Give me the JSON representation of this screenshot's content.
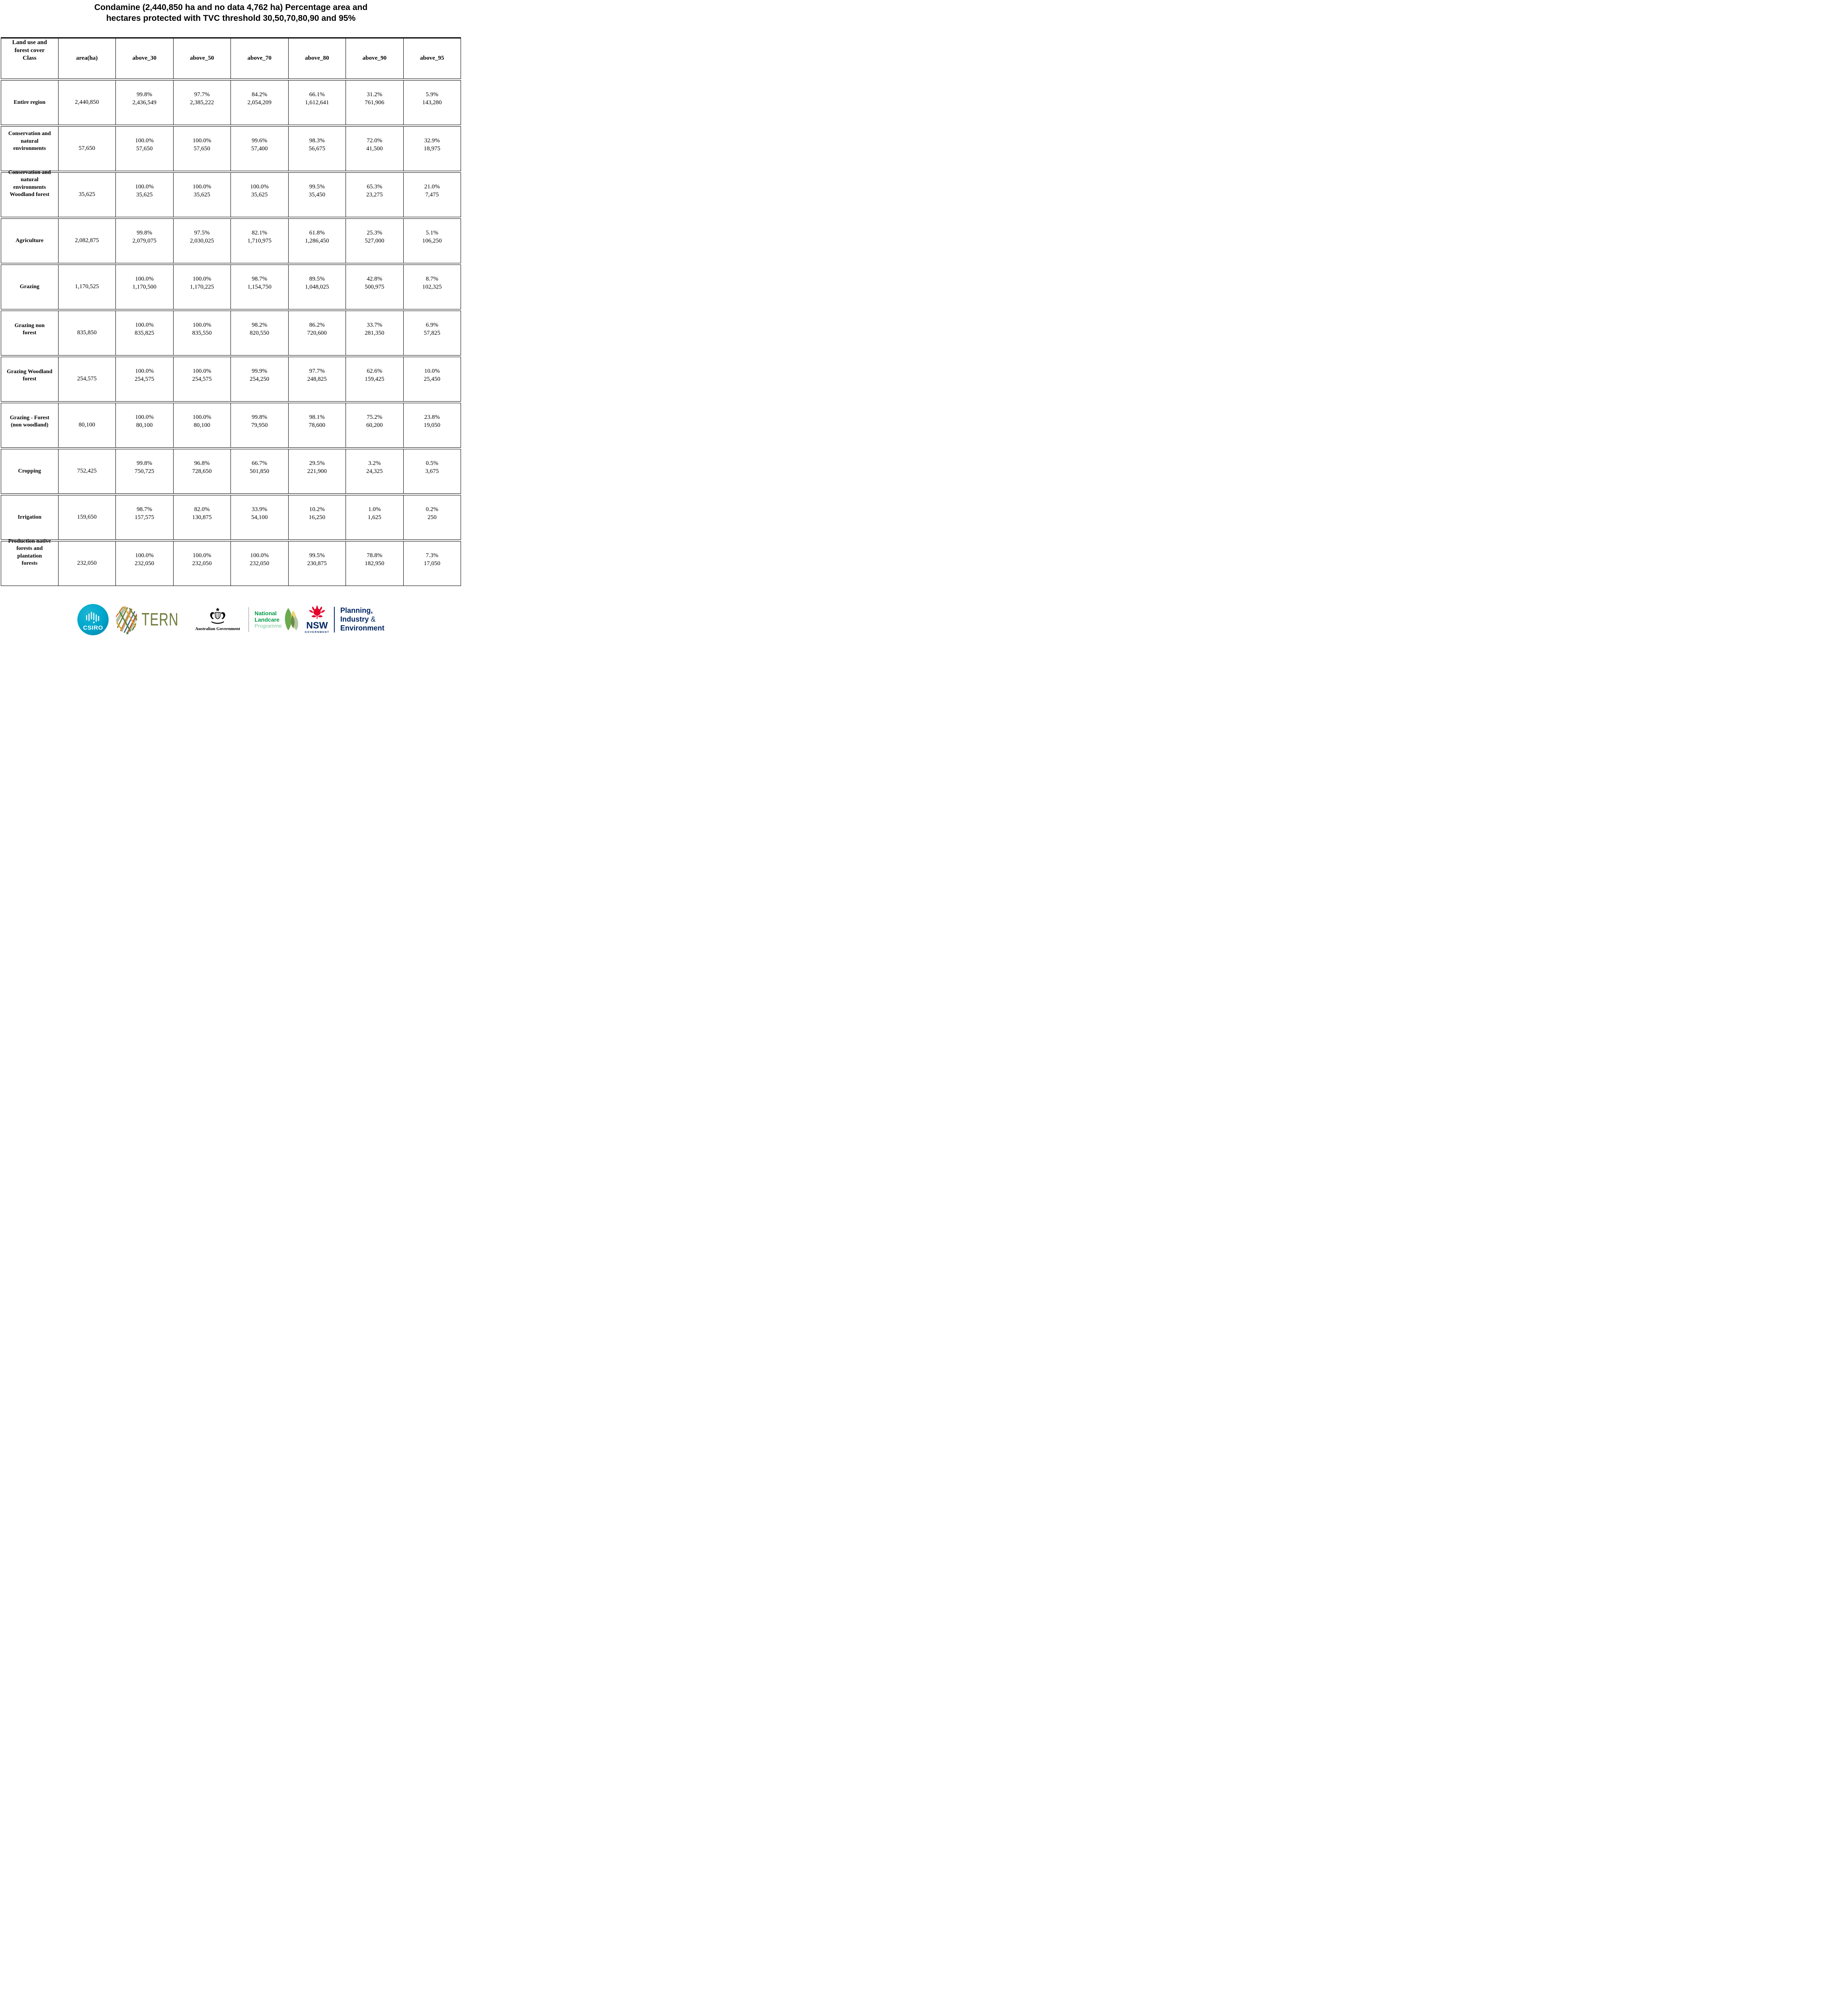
{
  "title": {
    "line1": "Condamine (2,440,850 ha and no data 4,762 ha) Percentage area and",
    "line2": "hectares protected with TVC threshold 30,50,70,80,90 and 95%"
  },
  "table": {
    "columns": [
      "Land use and\nforest cover\nClass",
      "area(ha)",
      "above_30",
      "above_50",
      "above_70",
      "above_80",
      "above_90",
      "above_95"
    ],
    "rows": [
      {
        "label": "Entire region",
        "area": "2,440,850",
        "values": [
          {
            "pct": "99.8%",
            "ha": "2,436,549"
          },
          {
            "pct": "97.7%",
            "ha": "2,385,222"
          },
          {
            "pct": "84.2%",
            "ha": "2,054,209"
          },
          {
            "pct": "66.1%",
            "ha": "1,612,641"
          },
          {
            "pct": "31.2%",
            "ha": "761,906"
          },
          {
            "pct": "5.9%",
            "ha": "143,280"
          }
        ]
      },
      {
        "label": "Conservation and\nnatural\nenvironments",
        "area": "57,650",
        "values": [
          {
            "pct": "100.0%",
            "ha": "57,650"
          },
          {
            "pct": "100.0%",
            "ha": "57,650"
          },
          {
            "pct": "99.6%",
            "ha": "57,400"
          },
          {
            "pct": "98.3%",
            "ha": "56,675"
          },
          {
            "pct": "72.0%",
            "ha": "41,500"
          },
          {
            "pct": "32.9%",
            "ha": "18,975"
          }
        ]
      },
      {
        "label": "Conservation and\nnatural\nenvironments\nWoodland forest",
        "area": "35,625",
        "values": [
          {
            "pct": "100.0%",
            "ha": "35,625"
          },
          {
            "pct": "100.0%",
            "ha": "35,625"
          },
          {
            "pct": "100.0%",
            "ha": "35,625"
          },
          {
            "pct": "99.5%",
            "ha": "35,450"
          },
          {
            "pct": "65.3%",
            "ha": "23,275"
          },
          {
            "pct": "21.0%",
            "ha": "7,475"
          }
        ]
      },
      {
        "label": "Agriculture",
        "area": "2,082,875",
        "values": [
          {
            "pct": "99.8%",
            "ha": "2,079,075"
          },
          {
            "pct": "97.5%",
            "ha": "2,030,025"
          },
          {
            "pct": "82.1%",
            "ha": "1,710,975"
          },
          {
            "pct": "61.8%",
            "ha": "1,286,450"
          },
          {
            "pct": "25.3%",
            "ha": "527,000"
          },
          {
            "pct": "5.1%",
            "ha": "106,250"
          }
        ]
      },
      {
        "label": "Grazing",
        "area": "1,170,525",
        "values": [
          {
            "pct": "100.0%",
            "ha": "1,170,500"
          },
          {
            "pct": "100.0%",
            "ha": "1,170,225"
          },
          {
            "pct": "98.7%",
            "ha": "1,154,750"
          },
          {
            "pct": "89.5%",
            "ha": "1,048,025"
          },
          {
            "pct": "42.8%",
            "ha": "500,975"
          },
          {
            "pct": "8.7%",
            "ha": "102,325"
          }
        ]
      },
      {
        "label": "Grazing non\nforest",
        "area": "835,850",
        "values": [
          {
            "pct": "100.0%",
            "ha": "835,825"
          },
          {
            "pct": "100.0%",
            "ha": "835,550"
          },
          {
            "pct": "98.2%",
            "ha": "820,550"
          },
          {
            "pct": "86.2%",
            "ha": "720,600"
          },
          {
            "pct": "33.7%",
            "ha": "281,350"
          },
          {
            "pct": "6.9%",
            "ha": "57,825"
          }
        ]
      },
      {
        "label": "Grazing Woodland\nforest",
        "area": "254,575",
        "values": [
          {
            "pct": "100.0%",
            "ha": "254,575"
          },
          {
            "pct": "100.0%",
            "ha": "254,575"
          },
          {
            "pct": "99.9%",
            "ha": "254,250"
          },
          {
            "pct": "97.7%",
            "ha": "248,825"
          },
          {
            "pct": "62.6%",
            "ha": "159,425"
          },
          {
            "pct": "10.0%",
            "ha": "25,450"
          }
        ]
      },
      {
        "label": "Grazing - Forest\n(non woodland)",
        "area": "80,100",
        "values": [
          {
            "pct": "100.0%",
            "ha": "80,100"
          },
          {
            "pct": "100.0%",
            "ha": "80,100"
          },
          {
            "pct": "99.8%",
            "ha": "79,950"
          },
          {
            "pct": "98.1%",
            "ha": "78,600"
          },
          {
            "pct": "75.2%",
            "ha": "60,200"
          },
          {
            "pct": "23.8%",
            "ha": "19,050"
          }
        ]
      },
      {
        "label": "Cropping",
        "area": "752,425",
        "values": [
          {
            "pct": "99.8%",
            "ha": "750,725"
          },
          {
            "pct": "96.8%",
            "ha": "728,650"
          },
          {
            "pct": "66.7%",
            "ha": "501,850"
          },
          {
            "pct": "29.5%",
            "ha": "221,900"
          },
          {
            "pct": "3.2%",
            "ha": "24,325"
          },
          {
            "pct": "0.5%",
            "ha": "3,675"
          }
        ]
      },
      {
        "label": "Irrigation",
        "area": "159,650",
        "values": [
          {
            "pct": "98.7%",
            "ha": "157,575"
          },
          {
            "pct": "82.0%",
            "ha": "130,875"
          },
          {
            "pct": "33.9%",
            "ha": "54,100"
          },
          {
            "pct": "10.2%",
            "ha": "16,250"
          },
          {
            "pct": "1.0%",
            "ha": "1,625"
          },
          {
            "pct": "0.2%",
            "ha": "250"
          }
        ]
      },
      {
        "label": "Production native\nforests and\nplantation\nforests",
        "area": "232,050",
        "values": [
          {
            "pct": "100.0%",
            "ha": "232,050"
          },
          {
            "pct": "100.0%",
            "ha": "232,050"
          },
          {
            "pct": "100.0%",
            "ha": "232,050"
          },
          {
            "pct": "99.5%",
            "ha": "230,875"
          },
          {
            "pct": "78.8%",
            "ha": "182,950"
          },
          {
            "pct": "7.3%",
            "ha": "17,050"
          }
        ]
      }
    ]
  },
  "footer": {
    "csiro": "CSIRO",
    "tern": "TERN",
    "aus_gov": "Australian Government",
    "landcare_line1": "National",
    "landcare_line2": "Landcare",
    "landcare_line3": "Programme",
    "nsw": "NSW",
    "nsw_sub": "GOVERNMENT",
    "pie_line1": "Planning,",
    "pie_line2": "Industry",
    "pie_amp": "&",
    "pie_line3": "Environment",
    "colors": {
      "csiro_teal": "#00a9ce",
      "tern_olive": "#6F7C3D",
      "landcare_green": "#009A44",
      "landcare_light_green": "#7CC79A",
      "nsw_red": "#E4002B",
      "nsw_navy": "#002664"
    }
  }
}
